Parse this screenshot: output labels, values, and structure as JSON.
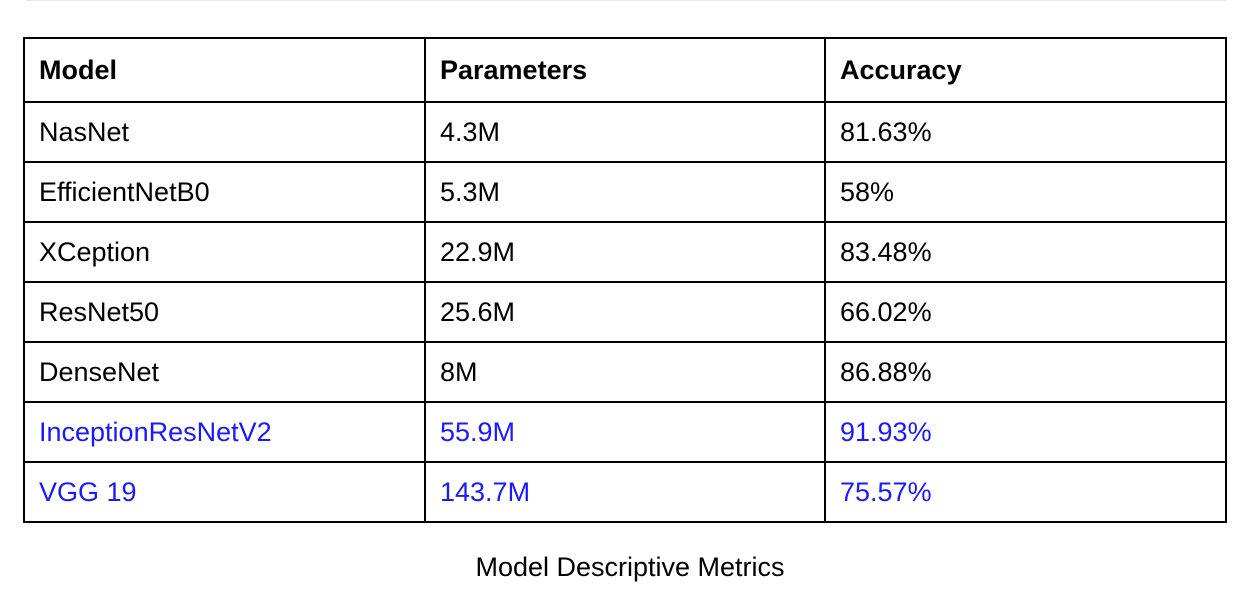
{
  "table": {
    "headers": [
      "Model",
      "Parameters",
      "Accuracy"
    ],
    "rows": [
      {
        "model": "NasNet",
        "parameters": "4.3M",
        "accuracy": "81.63%",
        "highlight": false
      },
      {
        "model": "EfficientNetB0",
        "parameters": "5.3M",
        "accuracy": "58%",
        "highlight": false
      },
      {
        "model": "XCeption",
        "parameters": "22.9M",
        "accuracy": "83.48%",
        "highlight": false
      },
      {
        "model": "ResNet50",
        "parameters": "25.6M",
        "accuracy": "66.02%",
        "highlight": false
      },
      {
        "model": "DenseNet",
        "parameters": "8M",
        "accuracy": "86.88%",
        "highlight": false
      },
      {
        "model": "InceptionResNetV2",
        "parameters": "55.9M",
        "accuracy": "91.93%",
        "highlight": true
      },
      {
        "model": "VGG 19",
        "parameters": "143.7M",
        "accuracy": "75.57%",
        "highlight": true
      }
    ],
    "highlight_color": "#1a1aff"
  },
  "caption": "Model Descriptive Metrics"
}
